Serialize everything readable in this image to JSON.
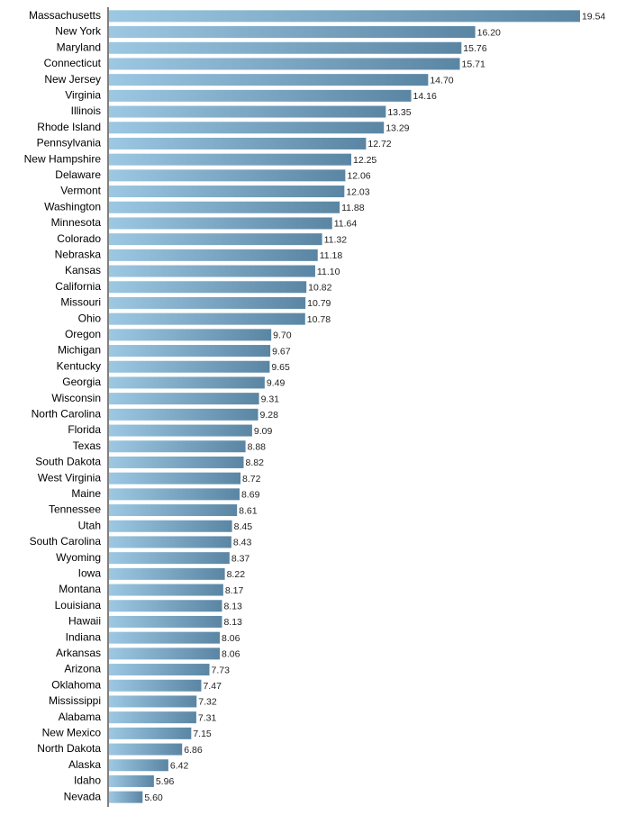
{
  "chart_data": {
    "type": "hbar",
    "categories": [
      "Massachusetts",
      "New York",
      "Maryland",
      "Connecticut",
      "New Jersey",
      "Virginia",
      "Illinois",
      "Rhode Island",
      "Pennsylvania",
      "New Hampshire",
      "Delaware",
      "Vermont",
      "Washington",
      "Minnesota",
      "Colorado",
      "Nebraska",
      "Kansas",
      "California",
      "Missouri",
      "Ohio",
      "Oregon",
      "Michigan",
      "Kentucky",
      "Georgia",
      "Wisconsin",
      "North Carolina",
      "Florida",
      "Texas",
      "South Dakota",
      "West Virginia",
      "Maine",
      "Tennessee",
      "Utah",
      "South Carolina",
      "Wyoming",
      "Iowa",
      "Montana",
      "Louisiana",
      "Hawaii",
      "Indiana",
      "Arkansas",
      "Arizona",
      "Oklahoma",
      "Mississippi",
      "Alabama",
      "New Mexico",
      "North Dakota",
      "Alaska",
      "Idaho",
      "Nevada"
    ],
    "values": [
      19.54,
      16.2,
      15.76,
      15.71,
      14.7,
      14.16,
      13.35,
      13.29,
      12.72,
      12.25,
      12.06,
      12.03,
      11.88,
      11.64,
      11.32,
      11.18,
      11.1,
      10.82,
      10.79,
      10.78,
      9.7,
      9.67,
      9.65,
      9.49,
      9.31,
      9.28,
      9.09,
      8.88,
      8.82,
      8.72,
      8.69,
      8.61,
      8.45,
      8.43,
      8.37,
      8.22,
      8.17,
      8.13,
      8.13,
      8.06,
      8.06,
      7.73,
      7.47,
      7.32,
      7.31,
      7.15,
      6.86,
      6.42,
      5.96,
      5.6
    ],
    "value_labels": [
      "19.54",
      "16.20",
      "15.76",
      "15.71",
      "14.70",
      "14.16",
      "13.35",
      "13.29",
      "12.72",
      "12.25",
      "12.06",
      "12.03",
      "11.88",
      "11.64",
      "11.32",
      "11.18",
      "11.10",
      "10.82",
      "10.79",
      "10.78",
      "9.70",
      "9.67",
      "9.65",
      "9.49",
      "9.31",
      "9.28",
      "9.09",
      "8.88",
      "8.82",
      "8.72",
      "8.69",
      "8.61",
      "8.45",
      "8.43",
      "8.37",
      "8.22",
      "8.17",
      "8.13",
      "8.13",
      "8.06",
      "8.06",
      "7.73",
      "7.47",
      "7.32",
      "7.31",
      "7.15",
      "6.86",
      "6.42",
      "5.96",
      "5.60"
    ],
    "colors": [
      "#9cc8e3",
      "#5a86a4"
    ],
    "xlim": [
      4.5,
      20
    ]
  }
}
